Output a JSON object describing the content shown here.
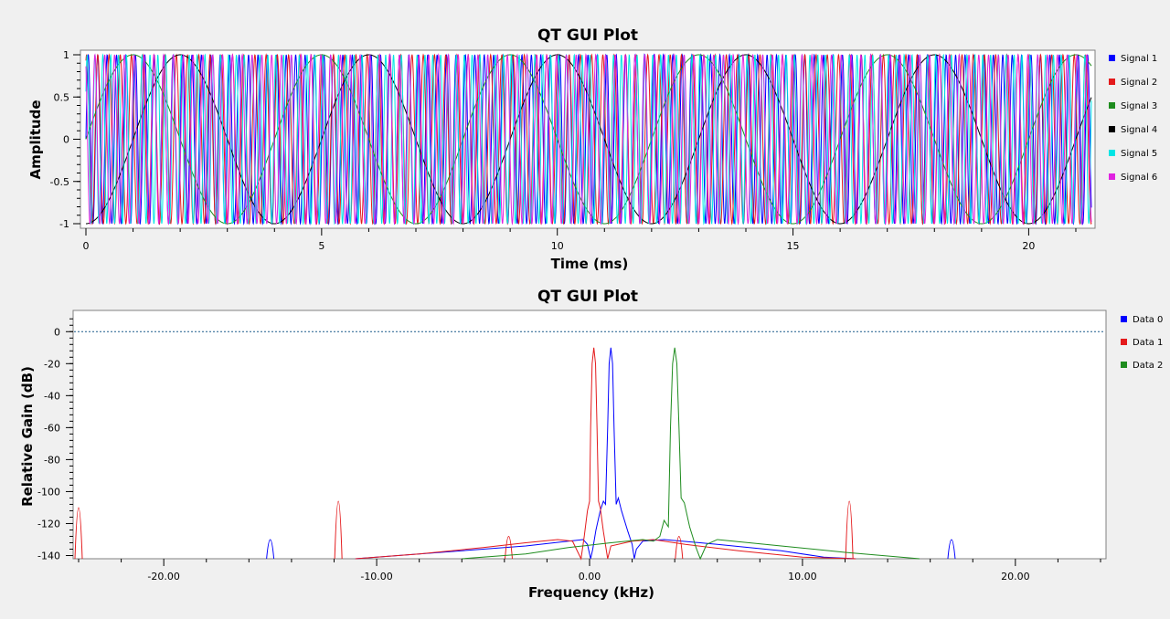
{
  "chart_data": [
    {
      "type": "line",
      "title": "QT GUI Plot",
      "xlabel": "Time (ms)",
      "ylabel": "Amplitude",
      "xlim": [
        0,
        21.33
      ],
      "ylim": [
        -1,
        1
      ],
      "x_ticks": [
        0,
        5,
        10,
        15,
        20
      ],
      "x_tick_labels": [
        "0",
        "5",
        "10",
        "15",
        "20"
      ],
      "y_ticks": [
        1,
        0.5,
        0,
        -0.5,
        -1
      ],
      "y_tick_labels": [
        "1",
        "0.5",
        "0",
        "-0.5",
        "-1"
      ],
      "grid": false,
      "legend": "right",
      "series": [
        {
          "name": "Signal 1",
          "color": "#0000ff",
          "frequency_khz": 5.0,
          "phase": 0.0
        },
        {
          "name": "Signal 2",
          "color": "#e41a1c",
          "frequency_khz": 4.2,
          "phase": 1.2
        },
        {
          "name": "Signal 3",
          "color": "#1e8c1e",
          "frequency_khz": 0.25,
          "phase": 0.0
        },
        {
          "name": "Signal 4",
          "color": "#000000",
          "frequency_khz": 0.25,
          "phase": -1.5708
        },
        {
          "name": "Signal 5",
          "color": "#00e5e5",
          "frequency_khz": 6.0,
          "phase": 0.6
        },
        {
          "name": "Signal 6",
          "color": "#e022e0",
          "frequency_khz": 4.8,
          "phase": 2.1
        }
      ]
    },
    {
      "type": "line",
      "title": "QT GUI Plot",
      "xlabel": "Frequency (kHz)",
      "ylabel": "Relative Gain (dB)",
      "xlim": [
        -24,
        24
      ],
      "ylim": [
        -142,
        11
      ],
      "x_ticks": [
        -20,
        -10,
        0,
        10,
        20
      ],
      "x_tick_labels": [
        "-20.00",
        "-10.00",
        "0.00",
        "10.00",
        "20.00"
      ],
      "y_ticks": [
        0,
        -20,
        -40,
        -60,
        -80,
        -100,
        -120,
        -140
      ],
      "y_tick_labels": [
        "0",
        "-20",
        "-40",
        "-60",
        "-80",
        "-100",
        "-120",
        "-140"
      ],
      "reference_line_db": 0,
      "grid": false,
      "legend": "right",
      "series": [
        {
          "name": "Data 0",
          "color": "#0000ff",
          "peak_khz": 1.0,
          "peak_db": -10,
          "points": [
            [
              -11,
              -142
            ],
            [
              -8,
              -139
            ],
            [
              -5,
              -136
            ],
            [
              -3,
              -134
            ],
            [
              -1,
              -131
            ],
            [
              -0.3,
              -130
            ],
            [
              -0.1,
              -133
            ],
            [
              0.05,
              -142
            ],
            [
              0.15,
              -136
            ],
            [
              0.3,
              -124
            ],
            [
              0.5,
              -112
            ],
            [
              0.65,
              -106
            ],
            [
              0.75,
              -108
            ],
            [
              0.85,
              -60
            ],
            [
              0.92,
              -20
            ],
            [
              1.0,
              -10
            ],
            [
              1.08,
              -20
            ],
            [
              1.15,
              -60
            ],
            [
              1.25,
              -108
            ],
            [
              1.35,
              -104
            ],
            [
              1.5,
              -112
            ],
            [
              1.8,
              -125
            ],
            [
              2.0,
              -133
            ],
            [
              2.1,
              -142
            ],
            [
              2.2,
              -136
            ],
            [
              2.5,
              -131
            ],
            [
              3.5,
              -130
            ],
            [
              6,
              -133
            ],
            [
              9,
              -137
            ],
            [
              11,
              -141
            ],
            [
              12.5,
              -142
            ]
          ],
          "spurs": [
            [
              -15,
              -130
            ],
            [
              17,
              -130
            ]
          ]
        },
        {
          "name": "Data 1",
          "color": "#e41a1c",
          "peak_khz": 0.2,
          "peak_db": -10,
          "points": [
            [
              -11,
              -142
            ],
            [
              -8,
              -139
            ],
            [
              -5,
              -135
            ],
            [
              -3,
              -132
            ],
            [
              -1.5,
              -130
            ],
            [
              -0.8,
              -131
            ],
            [
              -0.4,
              -142
            ],
            [
              -0.25,
              -128
            ],
            [
              -0.1,
              -112
            ],
            [
              0.0,
              -106
            ],
            [
              0.05,
              -60
            ],
            [
              0.12,
              -20
            ],
            [
              0.2,
              -10
            ],
            [
              0.28,
              -20
            ],
            [
              0.35,
              -60
            ],
            [
              0.42,
              -106
            ],
            [
              0.5,
              -110
            ],
            [
              0.65,
              -125
            ],
            [
              0.85,
              -142
            ],
            [
              1.0,
              -134
            ],
            [
              2.0,
              -131
            ],
            [
              3.0,
              -130
            ],
            [
              4.5,
              -133
            ],
            [
              7,
              -137
            ],
            [
              10,
              -141
            ],
            [
              12.5,
              -142
            ]
          ],
          "spurs": [
            [
              -24,
              -110
            ],
            [
              -11.8,
              -106
            ],
            [
              -3.8,
              -128
            ],
            [
              4.2,
              -128
            ],
            [
              12.2,
              -106
            ]
          ]
        },
        {
          "name": "Data 2",
          "color": "#1e8c1e",
          "peak_khz": 4.0,
          "peak_db": -10,
          "points": [
            [
              -6,
              -142
            ],
            [
              -3,
              -139
            ],
            [
              -1,
              -135
            ],
            [
              1,
              -132
            ],
            [
              2.5,
              -130
            ],
            [
              3.0,
              -131
            ],
            [
              3.3,
              -128
            ],
            [
              3.5,
              -118
            ],
            [
              3.7,
              -122
            ],
            [
              3.8,
              -60
            ],
            [
              3.9,
              -20
            ],
            [
              4.0,
              -10
            ],
            [
              4.1,
              -20
            ],
            [
              4.2,
              -60
            ],
            [
              4.3,
              -104
            ],
            [
              4.45,
              -107
            ],
            [
              4.7,
              -122
            ],
            [
              5.0,
              -135
            ],
            [
              5.2,
              -142
            ],
            [
              5.5,
              -133
            ],
            [
              6,
              -130
            ],
            [
              9,
              -134
            ],
            [
              12,
              -138
            ],
            [
              15.5,
              -142
            ]
          ],
          "spurs": []
        }
      ]
    }
  ]
}
